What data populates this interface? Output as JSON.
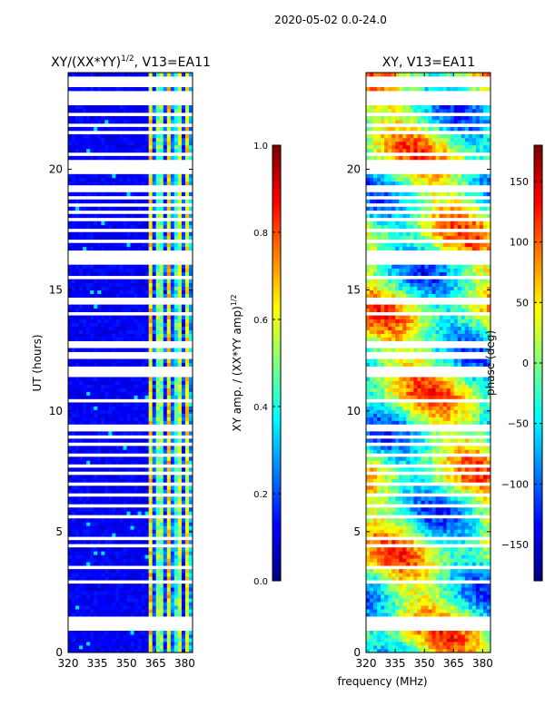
{
  "figure": {
    "suptitle": "2020-05-02 0.0-24.0",
    "xlabel": "frequency (MHz)",
    "ylabel": "UT (hours)"
  },
  "chart_data": [
    {
      "type": "heatmap",
      "title_prefix": "XY/(XX*YY)",
      "title_sup": "1/2",
      "title_suffix": ", V13=EA11",
      "x_ticks": [
        "320",
        "335",
        "350",
        "365",
        "380"
      ],
      "x_tick_values": [
        320,
        335,
        350,
        365,
        380
      ],
      "y_ticks": [
        "0",
        "5",
        "10",
        "15",
        "20"
      ],
      "y_tick_values": [
        0,
        5,
        10,
        15,
        20
      ],
      "xlim": [
        320,
        384
      ],
      "ylim": [
        0,
        24
      ],
      "rfi_band_mhz": [
        361,
        384
      ],
      "colorbar": {
        "label_prefix": "XY amp. / (XX*YY amp)",
        "label_sup": "1/2",
        "ticks": [
          "0.0",
          "0.2",
          "0.4",
          "0.6",
          "0.8",
          "1.0"
        ],
        "range": [
          0,
          1
        ]
      }
    },
    {
      "type": "heatmap",
      "title": "XY, V13=EA11",
      "x_ticks": [
        "320",
        "335",
        "350",
        "365",
        "380"
      ],
      "x_tick_values": [
        320,
        335,
        350,
        365,
        380
      ],
      "y_ticks": [
        "0",
        "5",
        "10",
        "15",
        "20"
      ],
      "y_tick_values": [
        0,
        5,
        10,
        15,
        20
      ],
      "xlim": [
        320,
        384
      ],
      "ylim": [
        0,
        24
      ],
      "colorbar": {
        "label": "phase (deg)",
        "ticks": [
          "−150",
          "−100",
          "−50",
          "0",
          "50",
          "100",
          "150"
        ],
        "tick_values": [
          -150,
          -100,
          -50,
          0,
          50,
          100,
          150
        ],
        "range": [
          -180,
          180
        ]
      }
    }
  ],
  "gaps_ut_hours": [
    0.45,
    1.0,
    1.2,
    1.45,
    2.95,
    3.3,
    3.55,
    4.45,
    4.8,
    5.25,
    5.6,
    6.1,
    6.5,
    7.0,
    7.4,
    7.8,
    8.2,
    8.6,
    8.95,
    9.3,
    9.9,
    10.4,
    11.5,
    11.6,
    11.75,
    12.3,
    12.75,
    13.35,
    14.0,
    14.55,
    15.5,
    16.1,
    16.2,
    16.3,
    16.5,
    17.0,
    17.5,
    17.9,
    18.2,
    18.55,
    18.85,
    19.2,
    19.85,
    20.0,
    20.25,
    20.6,
    21.5,
    21.85,
    22.3,
    22.7,
    22.95,
    23.2,
    23.45,
    23.7
  ]
}
